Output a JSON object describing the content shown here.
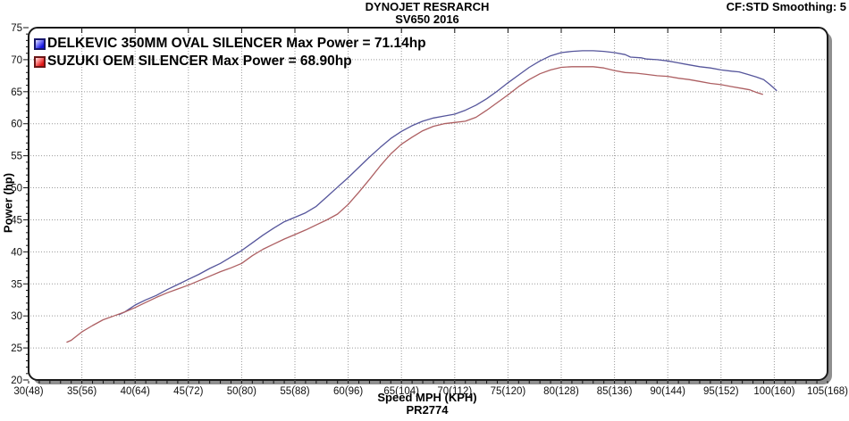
{
  "header": {
    "title": "DYNOJET RESRARCH",
    "subtitle": "SV650 2016",
    "smoothing": "CF:STD Smoothing: 5"
  },
  "footer": {
    "xlabel": "Speed MPH (KPH)",
    "run_id": "PR2774"
  },
  "legend": [
    {
      "label": "DELKEVIC 350MM OVAL SILENCER  Max Power = 71.14hp",
      "swatch_color": "#1414e0"
    },
    {
      "label": "SUZUKI OEM SILENCER Max Power = 68.90hp",
      "swatch_color": "#e01414"
    }
  ],
  "chart_data": {
    "type": "line",
    "title": "SV650 2016",
    "xlabel": "Speed MPH (KPH)",
    "ylabel": "Power (hp)",
    "xlim": [
      30,
      105
    ],
    "ylim": [
      20,
      75
    ],
    "grid": true,
    "legend_position": "top-left",
    "colors": {
      "frame": "#1a1a1a",
      "shadow": "#8f8f8f",
      "grid": "#999999",
      "tick": "#111111"
    },
    "x_ticks": [
      {
        "mph": 30,
        "label": "30(48)"
      },
      {
        "mph": 35,
        "label": "35(56)"
      },
      {
        "mph": 40,
        "label": "40(64)"
      },
      {
        "mph": 45,
        "label": "45(72)"
      },
      {
        "mph": 50,
        "label": "50(80)"
      },
      {
        "mph": 55,
        "label": "55(88)"
      },
      {
        "mph": 60,
        "label": "60(96)"
      },
      {
        "mph": 65,
        "label": "65(104)"
      },
      {
        "mph": 70,
        "label": "70(112)"
      },
      {
        "mph": 75,
        "label": "75(120)"
      },
      {
        "mph": 80,
        "label": "80(128)"
      },
      {
        "mph": 85,
        "label": "85(136)"
      },
      {
        "mph": 90,
        "label": "90(144)"
      },
      {
        "mph": 95,
        "label": "95(152)"
      },
      {
        "mph": 100,
        "label": "100(160)"
      },
      {
        "mph": 105,
        "label": "105(168)"
      }
    ],
    "y_ticks": [
      75,
      70,
      65,
      60,
      55,
      50,
      45,
      40,
      35,
      30,
      25,
      20
    ],
    "series": [
      {
        "name": "DELKEVIC 350MM OVAL SILENCER",
        "max_power_hp": 71.14,
        "color": "#55559b",
        "data_name": "power-curve-delkevic",
        "points": [
          [
            38.5,
            30.2
          ],
          [
            39,
            30.6
          ],
          [
            40,
            31.7
          ],
          [
            41,
            32.5
          ],
          [
            42,
            33.2
          ],
          [
            43,
            34.1
          ],
          [
            44,
            34.9
          ],
          [
            45,
            35.7
          ],
          [
            46,
            36.5
          ],
          [
            47,
            37.4
          ],
          [
            48,
            38.2
          ],
          [
            49,
            39.2
          ],
          [
            50,
            40.2
          ],
          [
            51,
            41.4
          ],
          [
            52,
            42.6
          ],
          [
            53,
            43.7
          ],
          [
            54,
            44.7
          ],
          [
            55,
            45.4
          ],
          [
            56,
            46.1
          ],
          [
            57,
            47.1
          ],
          [
            58,
            48.6
          ],
          [
            59,
            50.1
          ],
          [
            60,
            51.6
          ],
          [
            61,
            53.2
          ],
          [
            62,
            54.8
          ],
          [
            63,
            56.3
          ],
          [
            64,
            57.7
          ],
          [
            65,
            58.8
          ],
          [
            66,
            59.7
          ],
          [
            67,
            60.4
          ],
          [
            68,
            60.9
          ],
          [
            69,
            61.2
          ],
          [
            70,
            61.5
          ],
          [
            71,
            62.1
          ],
          [
            72,
            62.9
          ],
          [
            73,
            63.9
          ],
          [
            74,
            65.1
          ],
          [
            75,
            66.4
          ],
          [
            76,
            67.6
          ],
          [
            77,
            68.8
          ],
          [
            78,
            69.8
          ],
          [
            79,
            70.6
          ],
          [
            80,
            71.1
          ],
          [
            81,
            71.3
          ],
          [
            82,
            71.4
          ],
          [
            83,
            71.4
          ],
          [
            84,
            71.3
          ],
          [
            85,
            71.1
          ],
          [
            86,
            70.8
          ],
          [
            86.5,
            70.4
          ],
          [
            87.5,
            70.3
          ],
          [
            88,
            70.1
          ],
          [
            89,
            70.0
          ],
          [
            90,
            69.8
          ],
          [
            91,
            69.5
          ],
          [
            92,
            69.2
          ],
          [
            93,
            68.9
          ],
          [
            94,
            68.7
          ],
          [
            95,
            68.4
          ],
          [
            96,
            68.2
          ],
          [
            96.7,
            68.1
          ],
          [
            97.5,
            67.7
          ],
          [
            98.3,
            67.3
          ],
          [
            99,
            66.9
          ],
          [
            99.6,
            66.1
          ],
          [
            100.2,
            65.2
          ]
        ]
      },
      {
        "name": "SUZUKI OEM SILENCER",
        "max_power_hp": 68.9,
        "color": "#ad5f62",
        "data_name": "power-curve-suzuki-oem",
        "points": [
          [
            33.6,
            25.9
          ],
          [
            34,
            26.2
          ],
          [
            35,
            27.5
          ],
          [
            36,
            28.5
          ],
          [
            37,
            29.4
          ],
          [
            38,
            30.0
          ],
          [
            39,
            30.6
          ],
          [
            40,
            31.3
          ],
          [
            41,
            32.1
          ],
          [
            42,
            32.9
          ],
          [
            43,
            33.6
          ],
          [
            44,
            34.2
          ],
          [
            45,
            34.8
          ],
          [
            46,
            35.5
          ],
          [
            47,
            36.2
          ],
          [
            48,
            36.9
          ],
          [
            49,
            37.5
          ],
          [
            50,
            38.2
          ],
          [
            51,
            39.4
          ],
          [
            52,
            40.4
          ],
          [
            53,
            41.2
          ],
          [
            54,
            42.0
          ],
          [
            55,
            42.7
          ],
          [
            56,
            43.4
          ],
          [
            57,
            44.2
          ],
          [
            58,
            45.0
          ],
          [
            59,
            45.9
          ],
          [
            60,
            47.4
          ],
          [
            61,
            49.3
          ],
          [
            62,
            51.3
          ],
          [
            63,
            53.4
          ],
          [
            64,
            55.3
          ],
          [
            65,
            56.8
          ],
          [
            66,
            57.9
          ],
          [
            67,
            58.9
          ],
          [
            68,
            59.6
          ],
          [
            69,
            60.0
          ],
          [
            70,
            60.2
          ],
          [
            71,
            60.4
          ],
          [
            72,
            61.0
          ],
          [
            73,
            62.1
          ],
          [
            74,
            63.3
          ],
          [
            75,
            64.5
          ],
          [
            76,
            65.8
          ],
          [
            77,
            66.9
          ],
          [
            78,
            67.8
          ],
          [
            79,
            68.4
          ],
          [
            80,
            68.8
          ],
          [
            81,
            68.9
          ],
          [
            82,
            68.9
          ],
          [
            83,
            68.9
          ],
          [
            84,
            68.7
          ],
          [
            85,
            68.3
          ],
          [
            86,
            68.0
          ],
          [
            87,
            67.9
          ],
          [
            88,
            67.7
          ],
          [
            89,
            67.5
          ],
          [
            90,
            67.4
          ],
          [
            91,
            67.1
          ],
          [
            92,
            66.9
          ],
          [
            93,
            66.6
          ],
          [
            94,
            66.3
          ],
          [
            95,
            66.1
          ],
          [
            96,
            65.8
          ],
          [
            97,
            65.5
          ],
          [
            97.7,
            65.3
          ],
          [
            98.3,
            64.9
          ],
          [
            98.9,
            64.6
          ]
        ]
      }
    ]
  }
}
